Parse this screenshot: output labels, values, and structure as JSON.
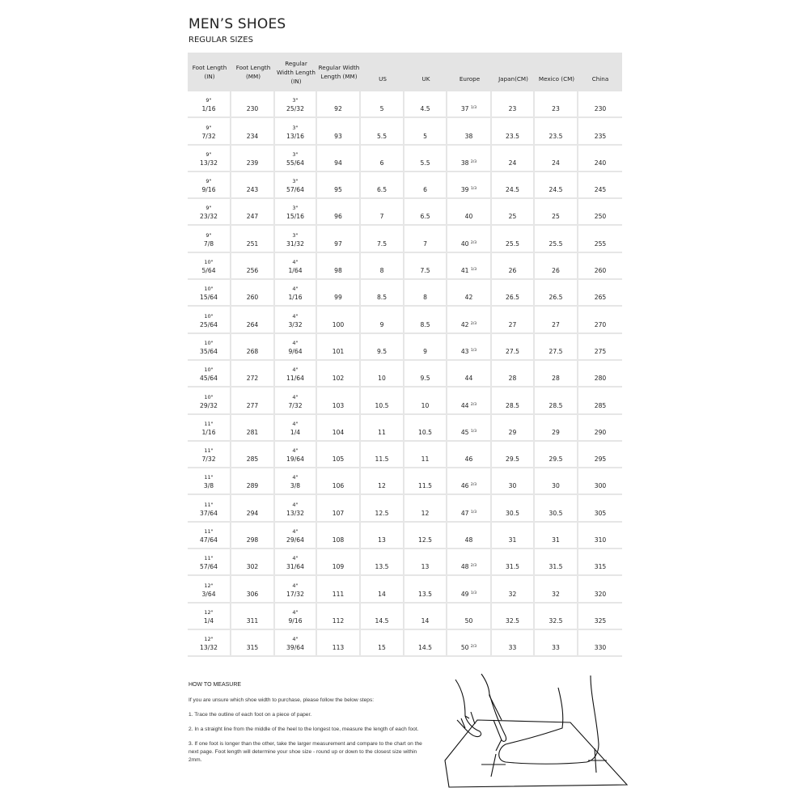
{
  "title": "MEN’S SHOES",
  "subtitle": "REGULAR SIZES",
  "headers": [
    "Foot Length (IN)",
    "Foot Length (MM)",
    "Regular Width Length (IN)",
    "Regular Width Length (MM)",
    "US",
    "UK",
    "Europe",
    "Japan(CM)",
    "Mexico (CM)",
    "China"
  ],
  "rows": [
    [
      [
        "9\"",
        "1/16"
      ],
      "230",
      [
        "3\"",
        "25/32"
      ],
      "92",
      "5",
      "4.5",
      [
        "37",
        "1/3"
      ],
      "23",
      "23",
      "230"
    ],
    [
      [
        "9\"",
        "7/32"
      ],
      "234",
      [
        "3\"",
        "13/16"
      ],
      "93",
      "5.5",
      "5",
      [
        "38",
        ""
      ],
      "23.5",
      "23.5",
      "235"
    ],
    [
      [
        "9\"",
        "13/32"
      ],
      "239",
      [
        "3\"",
        "55/64"
      ],
      "94",
      "6",
      "5.5",
      [
        "38",
        "2/3"
      ],
      "24",
      "24",
      "240"
    ],
    [
      [
        "9\"",
        "9/16"
      ],
      "243",
      [
        "3\"",
        "57/64"
      ],
      "95",
      "6.5",
      "6",
      [
        "39",
        "1/3"
      ],
      "24.5",
      "24.5",
      "245"
    ],
    [
      [
        "9\"",
        "23/32"
      ],
      "247",
      [
        "3\"",
        "15/16"
      ],
      "96",
      "7",
      "6.5",
      [
        "40",
        ""
      ],
      "25",
      "25",
      "250"
    ],
    [
      [
        "9\"",
        "7/8"
      ],
      "251",
      [
        "3\"",
        "31/32"
      ],
      "97",
      "7.5",
      "7",
      [
        "40",
        "2/3"
      ],
      "25.5",
      "25.5",
      "255"
    ],
    [
      [
        "10\"",
        "5/64"
      ],
      "256",
      [
        "4\"",
        "1/64"
      ],
      "98",
      "8",
      "7.5",
      [
        "41",
        "1/3"
      ],
      "26",
      "26",
      "260"
    ],
    [
      [
        "10\"",
        "15/64"
      ],
      "260",
      [
        "4\"",
        "1/16"
      ],
      "99",
      "8.5",
      "8",
      [
        "42",
        ""
      ],
      "26.5",
      "26.5",
      "265"
    ],
    [
      [
        "10\"",
        "25/64"
      ],
      "264",
      [
        "4\"",
        "3/32"
      ],
      "100",
      "9",
      "8.5",
      [
        "42",
        "2/3"
      ],
      "27",
      "27",
      "270"
    ],
    [
      [
        "10\"",
        "35/64"
      ],
      "268",
      [
        "4\"",
        "9/64"
      ],
      "101",
      "9.5",
      "9",
      [
        "43",
        "1/3"
      ],
      "27.5",
      "27.5",
      "275"
    ],
    [
      [
        "10\"",
        "45/64"
      ],
      "272",
      [
        "4\"",
        "11/64"
      ],
      "102",
      "10",
      "9.5",
      [
        "44",
        ""
      ],
      "28",
      "28",
      "280"
    ],
    [
      [
        "10\"",
        "29/32"
      ],
      "277",
      [
        "4\"",
        "7/32"
      ],
      "103",
      "10.5",
      "10",
      [
        "44",
        "2/3"
      ],
      "28.5",
      "28.5",
      "285"
    ],
    [
      [
        "11\"",
        "1/16"
      ],
      "281",
      [
        "4\"",
        "1/4"
      ],
      "104",
      "11",
      "10.5",
      [
        "45",
        "1/3"
      ],
      "29",
      "29",
      "290"
    ],
    [
      [
        "11\"",
        "7/32"
      ],
      "285",
      [
        "4\"",
        "19/64"
      ],
      "105",
      "11.5",
      "11",
      [
        "46",
        ""
      ],
      "29.5",
      "29.5",
      "295"
    ],
    [
      [
        "11\"",
        "3/8"
      ],
      "289",
      [
        "4\"",
        "3/8"
      ],
      "106",
      "12",
      "11.5",
      [
        "46",
        "2/3"
      ],
      "30",
      "30",
      "300"
    ],
    [
      [
        "11\"",
        "37/64"
      ],
      "294",
      [
        "4\"",
        "13/32"
      ],
      "107",
      "12.5",
      "12",
      [
        "47",
        "1/3"
      ],
      "30.5",
      "30.5",
      "305"
    ],
    [
      [
        "11\"",
        "47/64"
      ],
      "298",
      [
        "4\"",
        "29/64"
      ],
      "108",
      "13",
      "12.5",
      [
        "48",
        ""
      ],
      "31",
      "31",
      "310"
    ],
    [
      [
        "11\"",
        "57/64"
      ],
      "302",
      [
        "4\"",
        "31/64"
      ],
      "109",
      "13.5",
      "13",
      [
        "48",
        "2/3"
      ],
      "31.5",
      "31.5",
      "315"
    ],
    [
      [
        "12\"",
        "3/64"
      ],
      "306",
      [
        "4\"",
        "17/32"
      ],
      "111",
      "14",
      "13.5",
      [
        "49",
        "1/3"
      ],
      "32",
      "32",
      "320"
    ],
    [
      [
        "12\"",
        "1/4"
      ],
      "311",
      [
        "4\"",
        "9/16"
      ],
      "112",
      "14.5",
      "14",
      [
        "50",
        ""
      ],
      "32.5",
      "32.5",
      "325"
    ],
    [
      [
        "12\"",
        "13/32"
      ],
      "315",
      [
        "4\"",
        "39/64"
      ],
      "113",
      "15",
      "14.5",
      [
        "50",
        "2/3"
      ],
      "33",
      "33",
      "330"
    ]
  ],
  "how_to": {
    "heading": "HOW TO MEASURE",
    "intro": "If you are unsure which shoe width to purchase, please follow the below steps:",
    "step1": "1. Trace the outline of each foot on a piece of paper.",
    "step2": "2. In a straight line from the middle of the heel to the longest toe, measure the length of each foot.",
    "step3": "3. If one foot is longer than the other, take the larger measurement and compare to the chart on the next page. Foot length will determine your shoe size - round up or down to the closest size within 2mm."
  }
}
